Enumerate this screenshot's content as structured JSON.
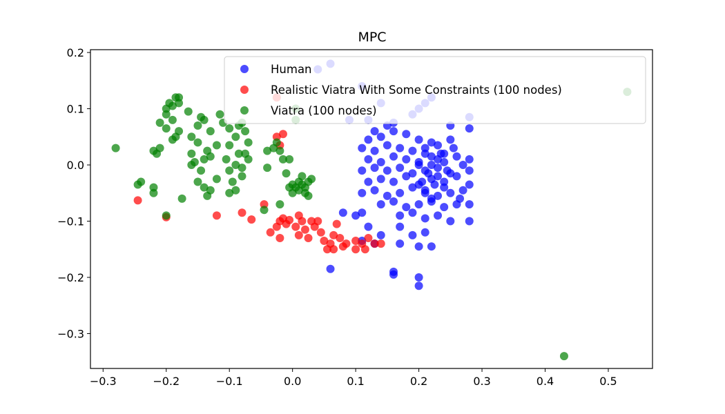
{
  "chart_data": {
    "type": "scatter",
    "title": "MPC",
    "xlabel": "",
    "ylabel": "",
    "xlim": [
      -0.32,
      0.57
    ],
    "ylim": [
      -0.362,
      0.205
    ],
    "xticks": [
      -0.3,
      -0.2,
      -0.1,
      0.0,
      0.1,
      0.2,
      0.3,
      0.4,
      0.5
    ],
    "xtick_labels": [
      "−0.3",
      "−0.2",
      "−0.1",
      "0.0",
      "0.1",
      "0.2",
      "0.3",
      "0.4",
      "0.5"
    ],
    "yticks": [
      0.2,
      0.1,
      0.0,
      -0.1,
      -0.2,
      -0.3
    ],
    "ytick_labels": [
      "0.2",
      "0.1",
      "0.0",
      "−0.1",
      "−0.2",
      "−0.3"
    ],
    "grid": false,
    "legend_position": "upper-right",
    "series": [
      {
        "name": "Human",
        "color": "#0000ff",
        "points": [
          [
            0.04,
            0.17
          ],
          [
            0.06,
            0.18
          ],
          [
            0.11,
            0.14
          ],
          [
            0.14,
            0.11
          ],
          [
            0.19,
            0.09
          ],
          [
            0.2,
            0.1
          ],
          [
            0.22,
            0.12
          ],
          [
            0.21,
            0.11
          ],
          [
            0.09,
            0.08
          ],
          [
            0.12,
            0.08
          ],
          [
            0.28,
            0.085
          ],
          [
            0.15,
            0.07
          ],
          [
            0.16,
            0.075
          ],
          [
            0.13,
            0.06
          ],
          [
            0.16,
            0.06
          ],
          [
            0.25,
            0.07
          ],
          [
            0.28,
            0.065
          ],
          [
            0.12,
            0.045
          ],
          [
            0.14,
            0.05
          ],
          [
            0.18,
            0.055
          ],
          [
            0.2,
            0.045
          ],
          [
            0.22,
            0.04
          ],
          [
            0.25,
            0.045
          ],
          [
            0.11,
            0.03
          ],
          [
            0.13,
            0.025
          ],
          [
            0.15,
            0.035
          ],
          [
            0.17,
            0.03
          ],
          [
            0.19,
            0.025
          ],
          [
            0.21,
            0.03
          ],
          [
            0.23,
            0.035
          ],
          [
            0.24,
            0.02
          ],
          [
            0.26,
            0.015
          ],
          [
            0.28,
            0.01
          ],
          [
            0.12,
            0.01
          ],
          [
            0.14,
            0.005
          ],
          [
            0.16,
            0.015
          ],
          [
            0.18,
            0.01
          ],
          [
            0.2,
            0.005
          ],
          [
            0.22,
            0.015
          ],
          [
            0.24,
            0.005
          ],
          [
            0.27,
            0.0
          ],
          [
            0.11,
            -0.01
          ],
          [
            0.13,
            -0.005
          ],
          [
            0.15,
            -0.01
          ],
          [
            0.17,
            -0.005
          ],
          [
            0.19,
            -0.015
          ],
          [
            0.21,
            -0.01
          ],
          [
            0.23,
            -0.005
          ],
          [
            0.25,
            -0.015
          ],
          [
            0.28,
            -0.01
          ],
          [
            0.12,
            -0.03
          ],
          [
            0.14,
            -0.025
          ],
          [
            0.16,
            -0.03
          ],
          [
            0.18,
            -0.02
          ],
          [
            0.2,
            -0.035
          ],
          [
            0.22,
            -0.025
          ],
          [
            0.24,
            -0.03
          ],
          [
            0.26,
            -0.02
          ],
          [
            0.28,
            -0.035
          ],
          [
            0.11,
            -0.05
          ],
          [
            0.13,
            -0.045
          ],
          [
            0.15,
            -0.055
          ],
          [
            0.17,
            -0.05
          ],
          [
            0.19,
            -0.04
          ],
          [
            0.21,
            -0.045
          ],
          [
            0.23,
            -0.055
          ],
          [
            0.25,
            -0.05
          ],
          [
            0.27,
            -0.045
          ],
          [
            0.14,
            -0.07
          ],
          [
            0.16,
            -0.065
          ],
          [
            0.18,
            -0.075
          ],
          [
            0.2,
            -0.07
          ],
          [
            0.22,
            -0.065
          ],
          [
            0.24,
            -0.075
          ],
          [
            0.26,
            -0.07
          ],
          [
            0.28,
            -0.07
          ],
          [
            0.17,
            -0.09
          ],
          [
            0.19,
            -0.085
          ],
          [
            0.21,
            -0.095
          ],
          [
            0.23,
            -0.09
          ],
          [
            0.25,
            -0.1
          ],
          [
            0.28,
            -0.1
          ],
          [
            0.1,
            -0.09
          ],
          [
            0.11,
            -0.085
          ],
          [
            0.08,
            -0.085
          ],
          [
            0.12,
            -0.11
          ],
          [
            0.17,
            -0.11
          ],
          [
            0.21,
            -0.12
          ],
          [
            0.14,
            -0.125
          ],
          [
            0.11,
            -0.135
          ],
          [
            0.19,
            -0.125
          ],
          [
            0.13,
            -0.14
          ],
          [
            0.17,
            -0.14
          ],
          [
            0.2,
            -0.145
          ],
          [
            0.22,
            -0.145
          ],
          [
            0.06,
            -0.185
          ],
          [
            0.16,
            -0.19
          ],
          [
            0.16,
            -0.195
          ],
          [
            0.2,
            -0.2
          ],
          [
            0.2,
            -0.215
          ],
          [
            0.21,
            -0.05
          ],
          [
            0.22,
            -0.06
          ],
          [
            0.23,
            -0.02
          ],
          [
            0.24,
            -0.04
          ],
          [
            0.2,
            0.0
          ],
          [
            0.22,
            0.0
          ],
          [
            0.23,
            0.01
          ],
          [
            0.21,
            0.02
          ],
          [
            0.225,
            -0.035
          ],
          [
            0.215,
            -0.015
          ],
          [
            0.205,
            -0.03
          ],
          [
            0.235,
            0.02
          ],
          [
            0.245,
            -0.01
          ],
          [
            0.255,
            0.03
          ],
          [
            0.265,
            -0.06
          ]
        ]
      },
      {
        "name": "Realistic Viatra With Some Constraints (100 nodes)",
        "color": "#ff0000",
        "points": [
          [
            -0.245,
            -0.063
          ],
          [
            -0.2,
            -0.093
          ],
          [
            -0.12,
            -0.09
          ],
          [
            -0.08,
            -0.085
          ],
          [
            -0.065,
            -0.097
          ],
          [
            -0.045,
            -0.07
          ],
          [
            -0.035,
            -0.12
          ],
          [
            -0.025,
            -0.11
          ],
          [
            -0.02,
            -0.1
          ],
          [
            -0.015,
            -0.095
          ],
          [
            -0.01,
            -0.105
          ],
          [
            -0.02,
            -0.13
          ],
          [
            -0.005,
            -0.098
          ],
          [
            0.005,
            -0.11
          ],
          [
            0.01,
            -0.125
          ],
          [
            0.015,
            -0.1
          ],
          [
            0.02,
            -0.115
          ],
          [
            0.025,
            -0.13
          ],
          [
            0.035,
            -0.11
          ],
          [
            0.04,
            -0.1
          ],
          [
            0.045,
            -0.12
          ],
          [
            0.05,
            -0.135
          ],
          [
            0.055,
            -0.15
          ],
          [
            0.06,
            -0.14
          ],
          [
            0.065,
            -0.15
          ],
          [
            0.065,
            -0.125
          ],
          [
            0.07,
            -0.105
          ],
          [
            0.075,
            -0.13
          ],
          [
            0.08,
            -0.145
          ],
          [
            0.085,
            -0.14
          ],
          [
            0.1,
            -0.135
          ],
          [
            0.1,
            -0.15
          ],
          [
            0.11,
            -0.14
          ],
          [
            0.115,
            -0.15
          ],
          [
            0.12,
            -0.13
          ],
          [
            0.13,
            -0.14
          ],
          [
            0.14,
            -0.14
          ],
          [
            -0.025,
            0.05
          ],
          [
            -0.015,
            0.055
          ],
          [
            -0.025,
            0.12
          ],
          [
            -0.02,
            0.035
          ],
          [
            0.01,
            -0.09
          ],
          [
            0.03,
            -0.1
          ]
        ]
      },
      {
        "name": "Viatra (100 nodes)",
        "color": "#008000",
        "points": [
          [
            -0.28,
            0.03
          ],
          [
            -0.24,
            -0.03
          ],
          [
            -0.245,
            -0.035
          ],
          [
            -0.22,
            -0.04
          ],
          [
            -0.22,
            -0.05
          ],
          [
            -0.22,
            0.025
          ],
          [
            -0.21,
            0.03
          ],
          [
            -0.215,
            0.02
          ],
          [
            -0.2,
            0.1
          ],
          [
            -0.2,
            0.09
          ],
          [
            -0.195,
            0.11
          ],
          [
            -0.19,
            0.105
          ],
          [
            -0.185,
            0.12
          ],
          [
            -0.18,
            0.12
          ],
          [
            -0.19,
            0.08
          ],
          [
            -0.18,
            0.06
          ],
          [
            -0.185,
            0.05
          ],
          [
            -0.19,
            0.045
          ],
          [
            -0.2,
            0.065
          ],
          [
            -0.21,
            0.075
          ],
          [
            -0.175,
            -0.06
          ],
          [
            -0.2,
            -0.09
          ],
          [
            -0.165,
            0.095
          ],
          [
            -0.16,
            0.05
          ],
          [
            -0.15,
            0.07
          ],
          [
            -0.14,
            0.08
          ],
          [
            -0.145,
            0.085
          ],
          [
            -0.13,
            0.06
          ],
          [
            -0.15,
            0.04
          ],
          [
            -0.16,
            0.0
          ],
          [
            -0.155,
            0.005
          ],
          [
            -0.14,
            0.01
          ],
          [
            -0.135,
            0.025
          ],
          [
            -0.13,
            0.015
          ],
          [
            -0.145,
            -0.01
          ],
          [
            -0.15,
            -0.03
          ],
          [
            -0.14,
            -0.04
          ],
          [
            -0.135,
            -0.055
          ],
          [
            -0.13,
            -0.045
          ],
          [
            -0.12,
            -0.025
          ],
          [
            -0.12,
            0.035
          ],
          [
            -0.115,
            0.09
          ],
          [
            -0.11,
            0.075
          ],
          [
            -0.1,
            0.065
          ],
          [
            -0.1,
            0.035
          ],
          [
            -0.105,
            0.01
          ],
          [
            -0.1,
            -0.01
          ],
          [
            -0.095,
            -0.03
          ],
          [
            -0.1,
            -0.05
          ],
          [
            -0.09,
            -0.045
          ],
          [
            -0.085,
            0.07
          ],
          [
            -0.08,
            0.075
          ],
          [
            -0.075,
            0.06
          ],
          [
            -0.085,
            0.02
          ],
          [
            -0.08,
            -0.005
          ],
          [
            -0.08,
            -0.02
          ],
          [
            -0.09,
            0.0
          ],
          [
            -0.07,
            0.04
          ],
          [
            -0.07,
            0.01
          ],
          [
            -0.075,
            0.02
          ],
          [
            -0.04,
            0.025
          ],
          [
            -0.04,
            -0.005
          ],
          [
            -0.045,
            -0.08
          ],
          [
            -0.02,
            -0.07
          ],
          [
            -0.03,
            0.03
          ],
          [
            -0.025,
            0.04
          ],
          [
            -0.02,
            0.025
          ],
          [
            -0.015,
            0.01
          ],
          [
            -0.01,
            -0.015
          ],
          [
            -0.005,
            0.01
          ],
          [
            0.0,
            -0.035
          ],
          [
            0.0,
            -0.05
          ],
          [
            0.005,
            -0.04
          ],
          [
            0.01,
            -0.045
          ],
          [
            0.01,
            -0.03
          ],
          [
            0.015,
            -0.02
          ],
          [
            0.02,
            -0.04
          ],
          [
            0.025,
            -0.055
          ],
          [
            0.025,
            -0.03
          ],
          [
            0.005,
            0.1
          ],
          [
            0.005,
            0.08
          ],
          [
            -0.005,
            -0.04
          ],
          [
            0.015,
            -0.035
          ],
          [
            0.02,
            -0.05
          ],
          [
            0.03,
            -0.025
          ],
          [
            0.43,
            -0.34
          ],
          [
            0.53,
            0.13
          ],
          [
            -0.18,
            0.11
          ],
          [
            -0.16,
            0.02
          ],
          [
            -0.09,
            0.05
          ]
        ]
      }
    ]
  }
}
